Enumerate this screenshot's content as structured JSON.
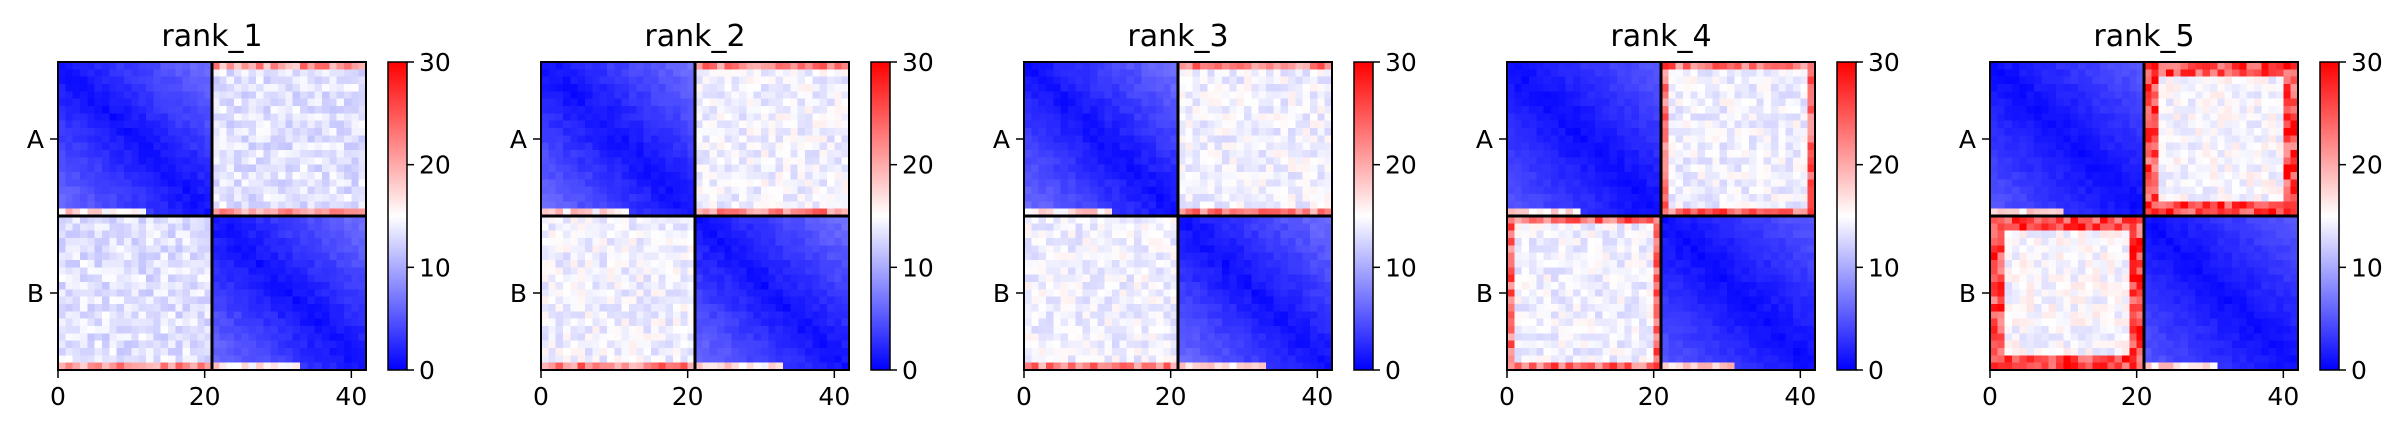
{
  "chart_data": [
    {
      "type": "heatmap",
      "title": "rank_1",
      "variant": "rank_1",
      "x_ticks": [
        "0",
        "20",
        "40"
      ],
      "x_tick_values": [
        0,
        20,
        40
      ],
      "y_categories": [
        "A",
        "B"
      ],
      "colorbar_ticks": [
        "0",
        "10",
        "20",
        "30"
      ],
      "clim": [
        0,
        30
      ],
      "colormap": [
        "#0000ff",
        "#ffffff",
        "#ff0000"
      ],
      "grid_size": 42,
      "block_split": 21
    },
    {
      "type": "heatmap",
      "title": "rank_2",
      "variant": "rank_2",
      "x_ticks": [
        "0",
        "20",
        "40"
      ],
      "x_tick_values": [
        0,
        20,
        40
      ],
      "y_categories": [
        "A",
        "B"
      ],
      "colorbar_ticks": [
        "0",
        "10",
        "20",
        "30"
      ],
      "clim": [
        0,
        30
      ],
      "colormap": [
        "#0000ff",
        "#ffffff",
        "#ff0000"
      ],
      "grid_size": 42,
      "block_split": 21
    },
    {
      "type": "heatmap",
      "title": "rank_3",
      "variant": "rank_3",
      "x_ticks": [
        "0",
        "20",
        "40"
      ],
      "x_tick_values": [
        0,
        20,
        40
      ],
      "y_categories": [
        "A",
        "B"
      ],
      "colorbar_ticks": [
        "0",
        "10",
        "20",
        "30"
      ],
      "clim": [
        0,
        30
      ],
      "colormap": [
        "#0000ff",
        "#ffffff",
        "#ff0000"
      ],
      "grid_size": 42,
      "block_split": 21
    },
    {
      "type": "heatmap",
      "title": "rank_4",
      "variant": "rank_4",
      "x_ticks": [
        "0",
        "20",
        "40"
      ],
      "x_tick_values": [
        0,
        20,
        40
      ],
      "y_categories": [
        "A",
        "B"
      ],
      "colorbar_ticks": [
        "0",
        "10",
        "20",
        "30"
      ],
      "clim": [
        0,
        30
      ],
      "colormap": [
        "#0000ff",
        "#ffffff",
        "#ff0000"
      ],
      "grid_size": 42,
      "block_split": 21
    },
    {
      "type": "heatmap",
      "title": "rank_5",
      "variant": "rank_5",
      "x_ticks": [
        "0",
        "20",
        "40"
      ],
      "x_tick_values": [
        0,
        20,
        40
      ],
      "y_categories": [
        "A",
        "B"
      ],
      "colorbar_ticks": [
        "0",
        "10",
        "20",
        "30"
      ],
      "clim": [
        0,
        30
      ],
      "colormap": [
        "#0000ff",
        "#ffffff",
        "#ff0000"
      ],
      "grid_size": 42,
      "block_split": 21
    }
  ]
}
